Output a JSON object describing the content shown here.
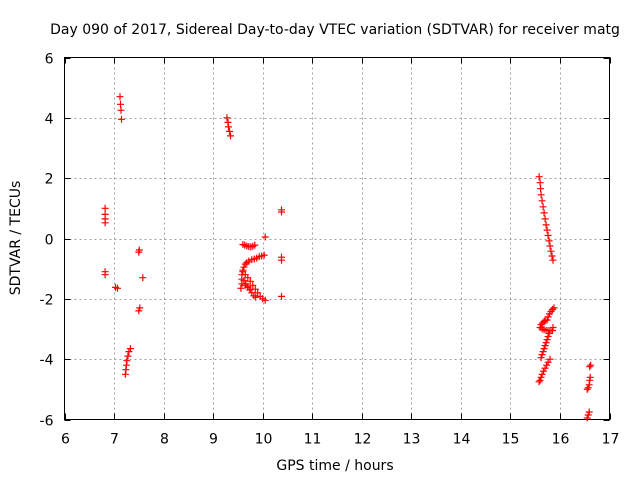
{
  "chart_data": {
    "type": "scatter",
    "title": "Day 090 of 2017, Sidereal Day-to-day VTEC variation (SDTVAR) for receiver matg",
    "xlabel": "GPS time / hours",
    "ylabel": "SDTVAR / TECUs",
    "xlim": [
      6,
      17
    ],
    "ylim": [
      -6,
      6
    ],
    "x_ticks": [
      "6",
      "7",
      "8",
      "9",
      "10",
      "11",
      "12",
      "13",
      "14",
      "15",
      "16",
      "17"
    ],
    "y_ticks": [
      "6",
      "4",
      "2",
      "0",
      "-2",
      "-4",
      "-6"
    ],
    "grid": true,
    "marker": "+",
    "series": [
      {
        "name": "SDTVAR",
        "color": "#ff0000",
        "points": [
          [
            6.82,
            1.0
          ],
          [
            6.82,
            0.8
          ],
          [
            6.82,
            0.65
          ],
          [
            6.82,
            0.52
          ],
          [
            6.82,
            -1.1
          ],
          [
            6.82,
            -1.2
          ],
          [
            7.03,
            -1.62
          ],
          [
            7.07,
            -1.65
          ],
          [
            7.12,
            4.7
          ],
          [
            7.13,
            4.45
          ],
          [
            7.14,
            4.25
          ],
          [
            7.15,
            3.95
          ],
          [
            7.23,
            -4.5
          ],
          [
            7.24,
            -4.35
          ],
          [
            7.25,
            -4.2
          ],
          [
            7.26,
            -4.05
          ],
          [
            7.28,
            -3.9
          ],
          [
            7.3,
            -3.75
          ],
          [
            7.33,
            -3.65
          ],
          [
            7.5,
            -0.45
          ],
          [
            7.51,
            -0.38
          ],
          [
            7.5,
            -2.4
          ],
          [
            7.52,
            -2.3
          ],
          [
            7.58,
            -1.3
          ],
          [
            9.28,
            4.0
          ],
          [
            9.3,
            3.85
          ],
          [
            9.31,
            3.7
          ],
          [
            9.33,
            3.55
          ],
          [
            9.35,
            3.4
          ],
          [
            9.56,
            -1.65
          ],
          [
            9.58,
            -1.5
          ],
          [
            9.58,
            -1.35
          ],
          [
            9.58,
            -1.2
          ],
          [
            9.6,
            -1.05
          ],
          [
            9.62,
            -0.95
          ],
          [
            9.65,
            -0.85
          ],
          [
            9.68,
            -0.8
          ],
          [
            9.6,
            -1.1
          ],
          [
            9.65,
            -1.2
          ],
          [
            9.7,
            -1.3
          ],
          [
            9.75,
            -1.42
          ],
          [
            9.8,
            -1.55
          ],
          [
            9.85,
            -1.68
          ],
          [
            9.9,
            -1.8
          ],
          [
            9.95,
            -1.92
          ],
          [
            10.0,
            -2.0
          ],
          [
            10.05,
            -2.05
          ],
          [
            9.62,
            -1.4
          ],
          [
            9.66,
            -1.5
          ],
          [
            9.7,
            -1.6
          ],
          [
            9.74,
            -1.7
          ],
          [
            9.78,
            -1.8
          ],
          [
            9.82,
            -1.9
          ],
          [
            9.86,
            -1.95
          ],
          [
            9.72,
            -0.75
          ],
          [
            9.78,
            -0.7
          ],
          [
            9.83,
            -0.68
          ],
          [
            9.88,
            -0.65
          ],
          [
            9.93,
            -0.6
          ],
          [
            9.98,
            -0.58
          ],
          [
            10.03,
            -0.55
          ],
          [
            9.6,
            -0.2
          ],
          [
            9.64,
            -0.22
          ],
          [
            9.68,
            -0.25
          ],
          [
            9.72,
            -0.27
          ],
          [
            9.76,
            -0.28
          ],
          [
            9.8,
            -0.26
          ],
          [
            9.84,
            -0.22
          ],
          [
            9.65,
            -1.55
          ],
          [
            9.7,
            -1.62
          ],
          [
            9.75,
            -1.68
          ],
          [
            10.05,
            0.05
          ],
          [
            10.38,
            0.95
          ],
          [
            10.38,
            0.88
          ],
          [
            10.38,
            -0.62
          ],
          [
            10.38,
            -0.72
          ],
          [
            10.38,
            -1.92
          ],
          [
            15.58,
            2.05
          ],
          [
            15.6,
            1.85
          ],
          [
            15.61,
            1.65
          ],
          [
            15.62,
            1.45
          ],
          [
            15.64,
            1.25
          ],
          [
            15.66,
            1.05
          ],
          [
            15.68,
            0.85
          ],
          [
            15.7,
            0.65
          ],
          [
            15.72,
            0.45
          ],
          [
            15.74,
            0.28
          ],
          [
            15.76,
            0.1
          ],
          [
            15.78,
            -0.08
          ],
          [
            15.8,
            -0.25
          ],
          [
            15.82,
            -0.42
          ],
          [
            15.84,
            -0.58
          ],
          [
            15.86,
            -0.72
          ],
          [
            15.6,
            -2.95
          ],
          [
            15.62,
            -2.85
          ],
          [
            15.65,
            -2.8
          ],
          [
            15.68,
            -2.75
          ],
          [
            15.7,
            -2.72
          ],
          [
            15.74,
            -2.7
          ],
          [
            15.64,
            -3.0
          ],
          [
            15.68,
            -3.02
          ],
          [
            15.72,
            -3.05
          ],
          [
            15.76,
            -3.05
          ],
          [
            15.8,
            -3.05
          ],
          [
            15.84,
            -3.05
          ],
          [
            15.76,
            -2.6
          ],
          [
            15.79,
            -2.5
          ],
          [
            15.82,
            -2.42
          ],
          [
            15.85,
            -2.35
          ],
          [
            15.88,
            -2.3
          ],
          [
            15.62,
            -3.95
          ],
          [
            15.64,
            -3.85
          ],
          [
            15.66,
            -3.75
          ],
          [
            15.68,
            -3.65
          ],
          [
            15.7,
            -3.55
          ],
          [
            15.72,
            -3.45
          ],
          [
            15.74,
            -3.35
          ],
          [
            15.76,
            -3.25
          ],
          [
            15.78,
            -3.15
          ],
          [
            15.6,
            -4.7
          ],
          [
            15.62,
            -4.6
          ],
          [
            15.64,
            -4.5
          ],
          [
            15.67,
            -4.4
          ],
          [
            15.7,
            -4.3
          ],
          [
            15.73,
            -4.2
          ],
          [
            15.76,
            -4.1
          ],
          [
            15.8,
            -4.0
          ],
          [
            15.58,
            -4.75
          ],
          [
            15.85,
            -3.05
          ],
          [
            15.86,
            -2.95
          ],
          [
            16.55,
            -5.95
          ],
          [
            16.57,
            -5.85
          ],
          [
            16.59,
            -5.75
          ],
          [
            16.57,
            -4.95
          ],
          [
            16.59,
            -4.85
          ],
          [
            16.6,
            -4.7
          ],
          [
            16.61,
            -4.6
          ],
          [
            16.6,
            -4.25
          ],
          [
            16.62,
            -4.2
          ],
          [
            16.55,
            -5.0
          ]
        ]
      }
    ]
  }
}
